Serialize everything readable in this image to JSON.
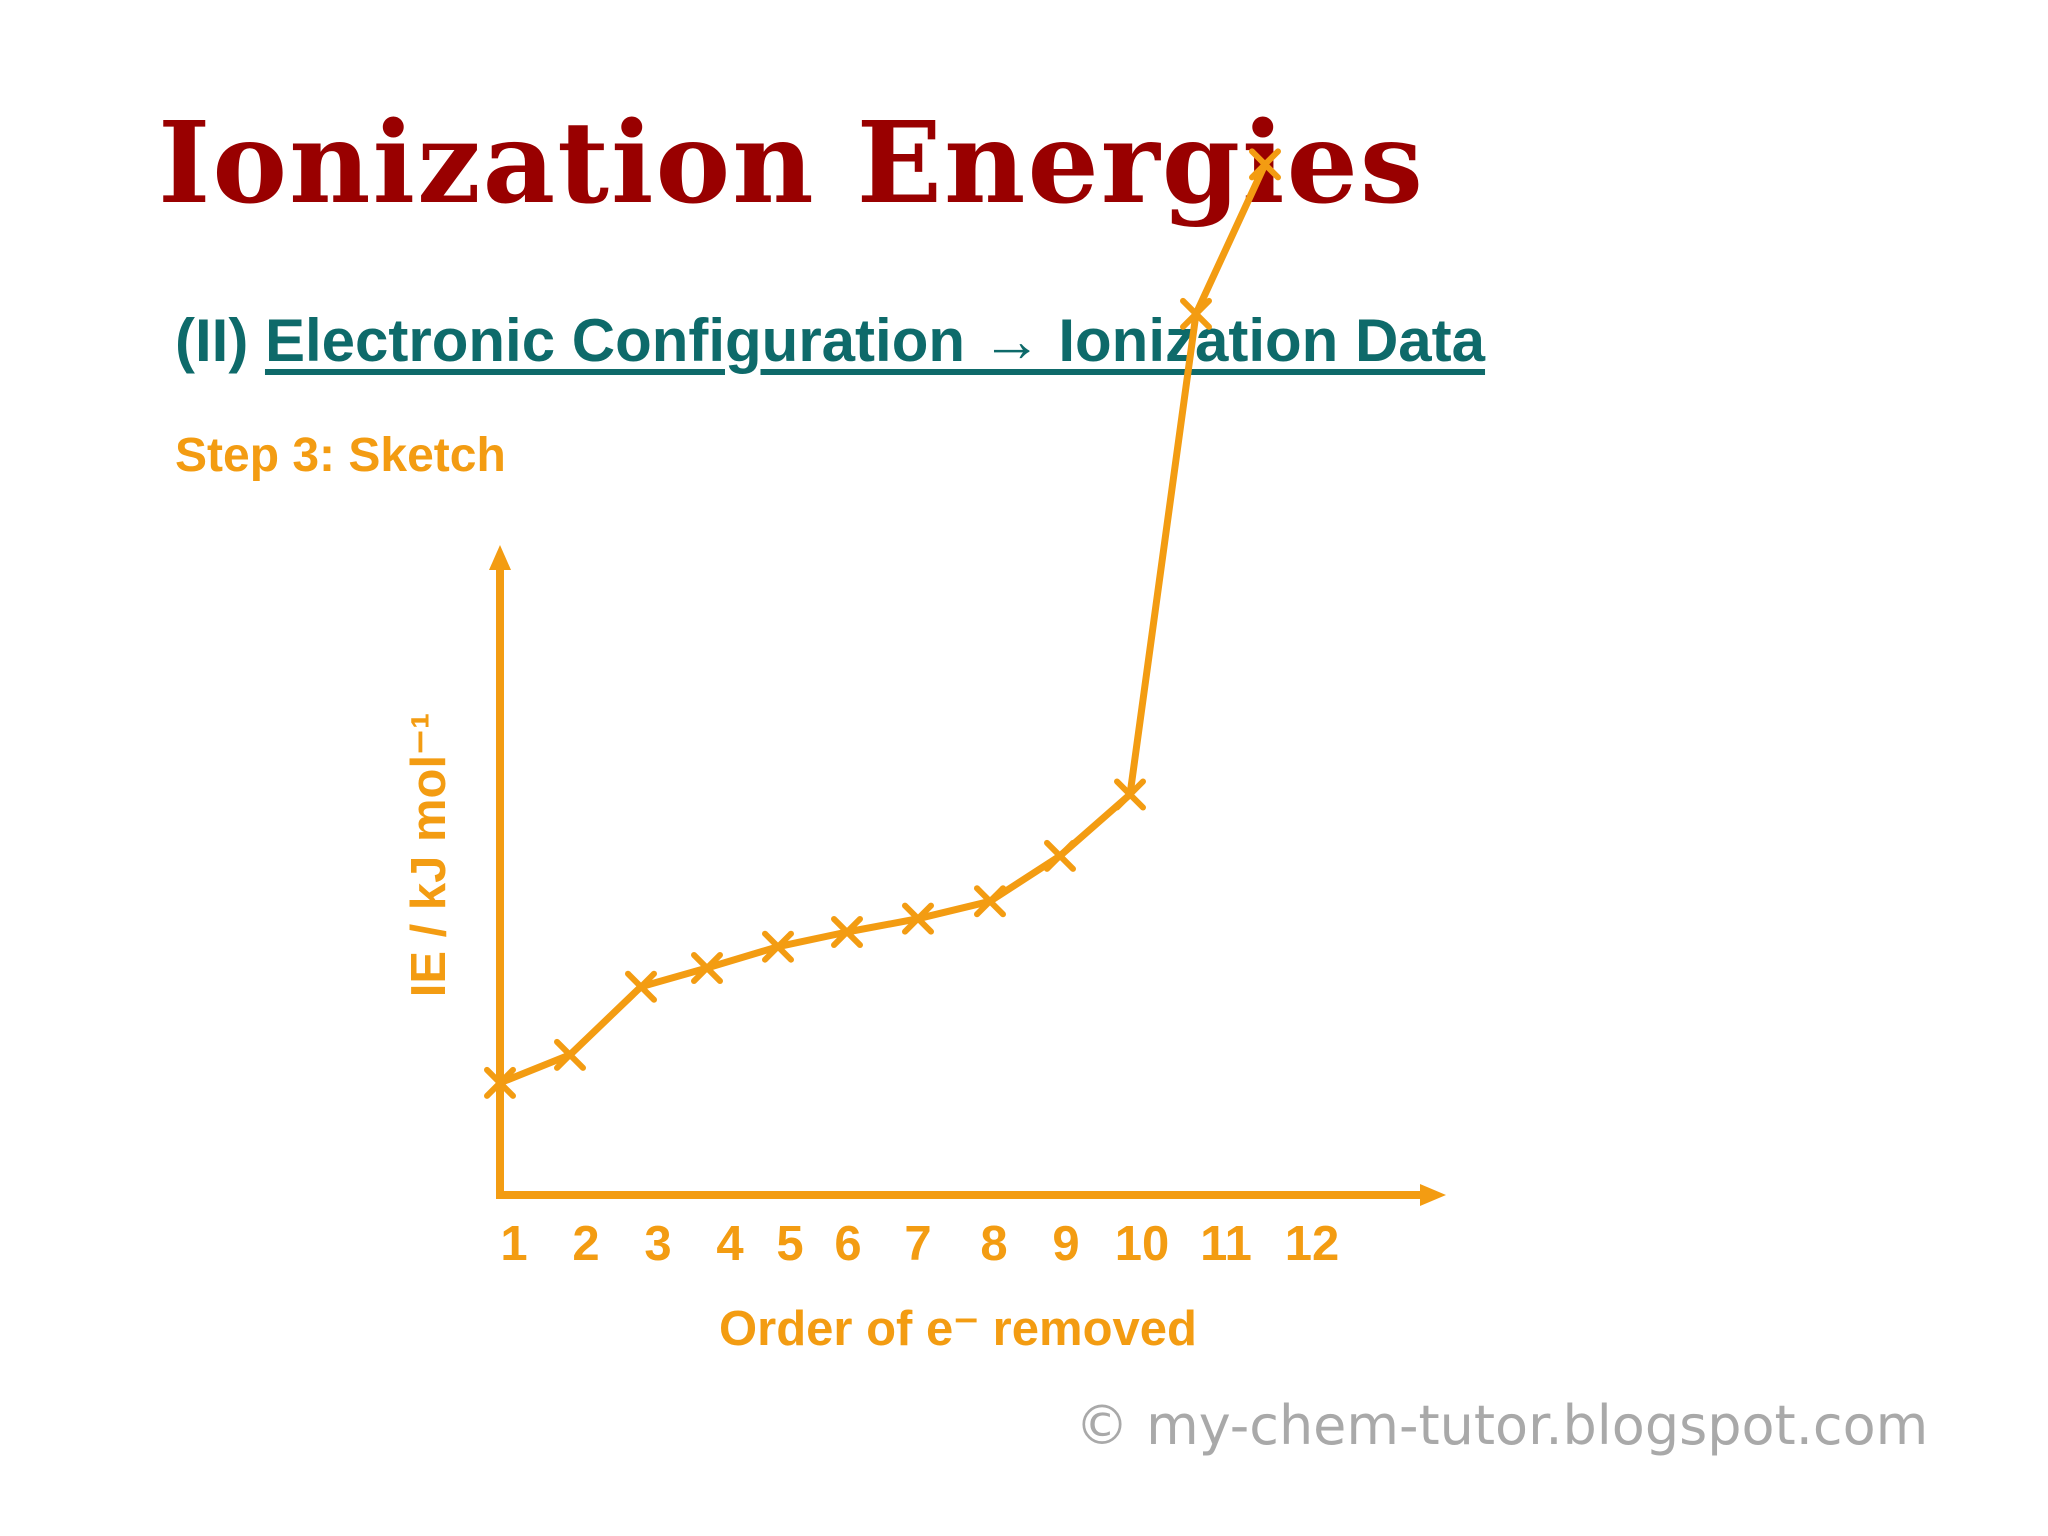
{
  "slide": {
    "title": "Ionization Energies",
    "section_prefix": "(II)",
    "section_heading": "Electronic Configuration → Ionization Data",
    "step": "Step 3: Sketch",
    "copyright": "© my-chem-tutor.blogspot.com"
  },
  "chart_data": {
    "type": "line",
    "title": "",
    "xlabel": "Order of e⁻ removed",
    "ylabel": "IE / kJ mol⁻¹",
    "categories": [
      "1",
      "2",
      "3",
      "4",
      "5",
      "6",
      "7",
      "8",
      "9",
      "10",
      "11",
      "12"
    ],
    "series": [
      {
        "values": [
          0.84,
          1.05,
          1.56,
          1.7,
          1.86,
          1.97,
          2.07,
          2.2,
          2.54,
          3.0,
          6.6,
          7.72
        ]
      }
    ],
    "y_axis_numbers_shown": false,
    "grid": false,
    "legend": "none",
    "color": "#f39c12",
    "marker": "x"
  }
}
